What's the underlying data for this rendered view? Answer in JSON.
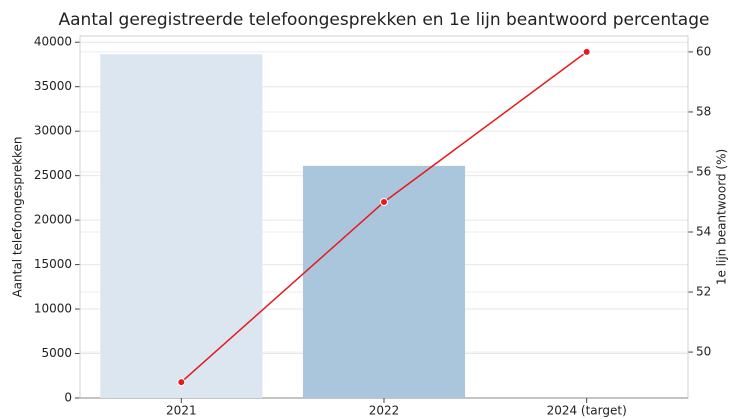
{
  "chart_data": {
    "type": "bar",
    "title": "Aantal geregistreerde telefoongesprekken en 1e lijn beantwoord percentage",
    "categories": [
      "2021",
      "2022",
      "2024 (target)"
    ],
    "ylabel": "Aantal telefoongesprekken",
    "y2label": "1e lijn beantwoord (%)",
    "series": [
      {
        "type": "bar",
        "colors": [
          "#dce6f0",
          "#a9c6dc",
          "#a9c6dc"
        ],
        "values": [
          38650,
          26100,
          null
        ]
      },
      {
        "type": "line",
        "color": "#e8191c",
        "values": [
          49,
          55,
          60
        ],
        "axis": "y2"
      }
    ],
    "ylim": [
      0,
      40700
    ],
    "yticks": [
      0,
      5000,
      10000,
      15000,
      20000,
      25000,
      30000,
      35000,
      40000
    ],
    "y2lim": [
      48.47,
      60.53
    ],
    "y2ticks": [
      50,
      52,
      54,
      56,
      58,
      60
    ],
    "grid": true
  }
}
